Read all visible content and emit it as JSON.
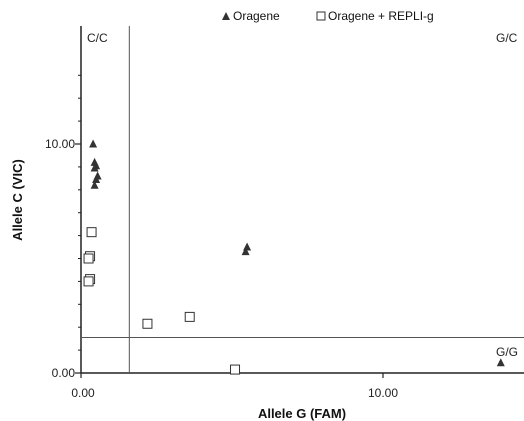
{
  "chart_data": {
    "type": "scatter",
    "xlabel": "Allele G (FAM)",
    "ylabel": "Allele C (VIC)",
    "xlim": [
      0,
      15.5
    ],
    "ylim": [
      0,
      14.2
    ],
    "x_ticks": [
      {
        "value": 0,
        "label": "0.00"
      },
      {
        "value": 10,
        "label": "10.00"
      }
    ],
    "y_ticks": [
      {
        "value": 0,
        "label": "0.00"
      },
      {
        "value": 10,
        "label": "10.00"
      }
    ],
    "minor_y_ticks": [
      1,
      2,
      3,
      4,
      5,
      6,
      7,
      8,
      9,
      11,
      12,
      13
    ],
    "x_threshold": 1.6,
    "y_threshold": 1.55,
    "legend": {
      "placement": "top",
      "entries": [
        "Oragene",
        "Oragene + REPLI-g"
      ]
    },
    "quadrant_labels": {
      "top_left": "C/C",
      "top_right": "G/C",
      "bottom_right": "G/G"
    },
    "series": [
      {
        "name": "Oragene",
        "marker": "triangle",
        "color": "#333333",
        "points": [
          {
            "x": 0.4,
            "y": 10.0
          },
          {
            "x": 0.45,
            "y": 9.2
          },
          {
            "x": 0.5,
            "y": 9.05
          },
          {
            "x": 0.45,
            "y": 8.95
          },
          {
            "x": 0.55,
            "y": 8.6
          },
          {
            "x": 0.5,
            "y": 8.45
          },
          {
            "x": 0.45,
            "y": 8.2
          },
          {
            "x": 5.5,
            "y": 5.5
          },
          {
            "x": 5.45,
            "y": 5.3
          },
          {
            "x": 13.9,
            "y": 0.45
          }
        ]
      },
      {
        "name": "Oragene + REPLI-g",
        "marker": "square",
        "color": "#333333",
        "points": [
          {
            "x": 0.35,
            "y": 6.15
          },
          {
            "x": 0.3,
            "y": 5.1
          },
          {
            "x": 0.25,
            "y": 5.0
          },
          {
            "x": 0.3,
            "y": 4.1
          },
          {
            "x": 0.25,
            "y": 4.0
          },
          {
            "x": 2.2,
            "y": 2.15
          },
          {
            "x": 3.6,
            "y": 2.45
          },
          {
            "x": 5.1,
            "y": 0.15
          }
        ]
      }
    ]
  }
}
